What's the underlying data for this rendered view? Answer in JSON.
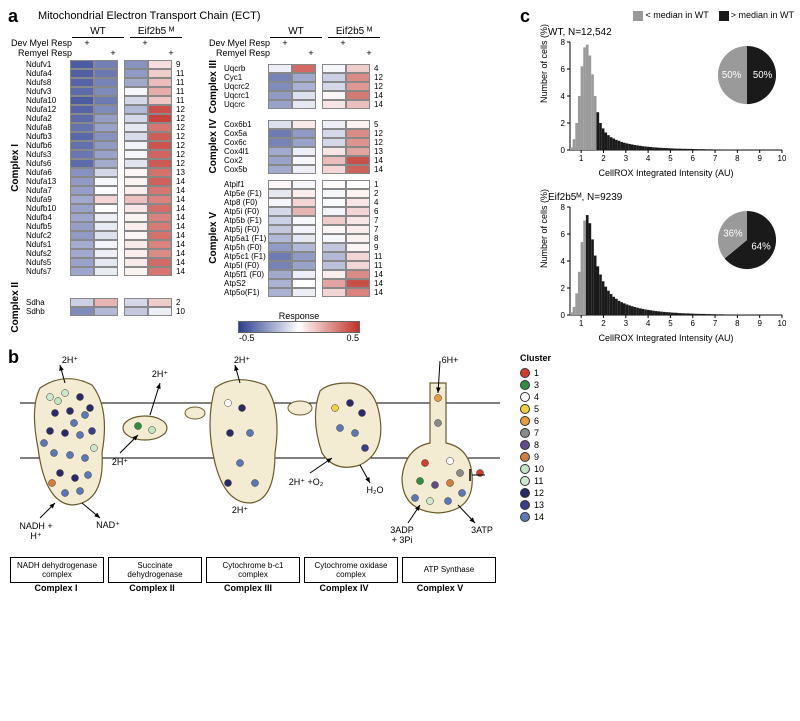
{
  "panel_labels": {
    "a": "a",
    "b": "b",
    "c": "c"
  },
  "etc_title": "Mitochondrial Electron Transport Chain (ECT)",
  "genotypes": [
    "WT",
    "Eif2b5 ᴹ"
  ],
  "conditions": {
    "dev": "Dev Myel Resp",
    "rem": "Remyel Resp"
  },
  "plus": "+",
  "response": {
    "label": "Response",
    "min": "-0.5",
    "max": "0.5"
  },
  "colors": {
    "scale_low": "#2b3e8f",
    "scale_high": "#c03028",
    "gray": "#9a9a9a",
    "black": "#1a1a1a",
    "membrane": "#f3ecd2",
    "membrane_stroke": "#6b5a2a"
  },
  "complexes_left": [
    {
      "name": "Complex I",
      "genes": [
        {
          "n": "Ndufv1",
          "c": 9,
          "v": [
            -0.42,
            -0.33,
            -0.28,
            0.08
          ]
        },
        {
          "n": "Ndufa4",
          "c": 11,
          "v": [
            -0.41,
            -0.35,
            -0.26,
            0.12
          ]
        },
        {
          "n": "Ndufs8",
          "c": 11,
          "v": [
            -0.4,
            -0.32,
            -0.22,
            0.16
          ]
        },
        {
          "n": "Ndufv3",
          "c": 11,
          "v": [
            -0.38,
            -0.3,
            -0.02,
            0.2
          ]
        },
        {
          "n": "Ndufa10",
          "c": 11,
          "v": [
            -0.42,
            -0.34,
            -0.1,
            0.14
          ]
        },
        {
          "n": "Ndufa12",
          "c": 12,
          "v": [
            -0.4,
            -0.3,
            -0.18,
            0.42
          ]
        },
        {
          "n": "Ndufa2",
          "c": 12,
          "v": [
            -0.38,
            -0.25,
            -0.1,
            0.45
          ]
        },
        {
          "n": "Ndufa8",
          "c": 12,
          "v": [
            -0.36,
            -0.24,
            -0.06,
            0.33
          ]
        },
        {
          "n": "Ndufb3",
          "c": 12,
          "v": [
            -0.39,
            -0.28,
            -0.09,
            0.39
          ]
        },
        {
          "n": "Ndufb6",
          "c": 12,
          "v": [
            -0.37,
            -0.26,
            -0.03,
            0.41
          ]
        },
        {
          "n": "Ndufs3",
          "c": 12,
          "v": [
            -0.35,
            -0.24,
            -0.02,
            0.37
          ]
        },
        {
          "n": "Ndufs6",
          "c": 12,
          "v": [
            -0.38,
            -0.22,
            -0.07,
            0.4
          ]
        },
        {
          "n": "Ndufa6",
          "c": 13,
          "v": [
            -0.28,
            -0.1,
            0.02,
            0.34
          ]
        },
        {
          "n": "Ndufa13",
          "c": 14,
          "v": [
            -0.26,
            -0.02,
            0.03,
            0.38
          ]
        },
        {
          "n": "Ndufa7",
          "c": 14,
          "v": [
            -0.25,
            -0.01,
            0.04,
            0.33
          ]
        },
        {
          "n": "Ndufa9",
          "c": 14,
          "v": [
            -0.22,
            0.1,
            0.15,
            0.3
          ]
        },
        {
          "n": "Ndufb10",
          "c": 14,
          "v": [
            -0.24,
            0.0,
            0.06,
            0.35
          ]
        },
        {
          "n": "Ndufb4",
          "c": 14,
          "v": [
            -0.23,
            -0.04,
            0.03,
            0.3
          ]
        },
        {
          "n": "Ndufb5",
          "c": 14,
          "v": [
            -0.25,
            -0.05,
            0.04,
            0.32
          ]
        },
        {
          "n": "Ndufc2",
          "c": 14,
          "v": [
            -0.26,
            -0.08,
            0.02,
            0.34
          ]
        },
        {
          "n": "Ndufs1",
          "c": 14,
          "v": [
            -0.21,
            -0.03,
            0.05,
            0.3
          ]
        },
        {
          "n": "Ndufs2",
          "c": 14,
          "v": [
            -0.22,
            -0.04,
            0.04,
            0.28
          ]
        },
        {
          "n": "Ndufs5",
          "c": 14,
          "v": [
            -0.24,
            -0.06,
            0.05,
            0.36
          ]
        },
        {
          "n": "Ndufs7",
          "c": 14,
          "v": [
            -0.23,
            -0.05,
            0.03,
            0.33
          ]
        }
      ]
    },
    {
      "name": "Complex II",
      "genes": [
        {
          "n": "Sdha",
          "c": 2,
          "v": [
            -0.12,
            0.18,
            -0.1,
            0.12
          ]
        },
        {
          "n": "Sdhb",
          "c": 10,
          "v": [
            -0.3,
            -0.18,
            -0.14,
            -0.04
          ]
        }
      ]
    }
  ],
  "complexes_right": [
    {
      "name": "Complex III",
      "genes": [
        {
          "n": "Uqcrb",
          "c": 4,
          "v": [
            -0.04,
            0.36,
            -0.02,
            0.12
          ]
        },
        {
          "n": "Cyc1",
          "c": 12,
          "v": [
            -0.32,
            -0.22,
            -0.12,
            0.28
          ]
        },
        {
          "n": "Uqcrc2",
          "c": 12,
          "v": [
            -0.3,
            -0.2,
            -0.1,
            0.25
          ]
        },
        {
          "n": "Uqcrc1",
          "c": 14,
          "v": [
            -0.26,
            -0.08,
            0.02,
            0.32
          ]
        },
        {
          "n": "Uqcrc",
          "c": 14,
          "v": [
            -0.24,
            -0.06,
            0.06,
            0.15
          ]
        }
      ]
    },
    {
      "name": "Complex IV",
      "genes": [
        {
          "n": "Cox6b1",
          "c": 5,
          "v": [
            -0.08,
            0.05,
            -0.04,
            0.03
          ]
        },
        {
          "n": "Cox5a",
          "c": 12,
          "v": [
            -0.34,
            -0.26,
            -0.1,
            0.28
          ]
        },
        {
          "n": "Cox6c",
          "c": 12,
          "v": [
            -0.32,
            -0.24,
            -0.1,
            0.26
          ]
        },
        {
          "n": "Cox4l1",
          "c": 13,
          "v": [
            -0.22,
            -0.04,
            0.06,
            0.22
          ]
        },
        {
          "n": "Cox2",
          "c": 14,
          "v": [
            -0.24,
            -0.02,
            0.16,
            0.42
          ]
        },
        {
          "n": "Cox5b",
          "c": 14,
          "v": [
            -0.22,
            -0.04,
            0.1,
            0.38
          ]
        }
      ]
    },
    {
      "name": "Complex V",
      "genes": [
        {
          "n": "Atpif1",
          "c": 1,
          "v": [
            0.02,
            -0.02,
            0.01,
            0.0
          ]
        },
        {
          "n": "Atp5e (F1)",
          "c": 2,
          "v": [
            -0.06,
            0.04,
            -0.02,
            0.03
          ]
        },
        {
          "n": "Atp8 (F0)",
          "c": 4,
          "v": [
            -0.02,
            0.1,
            -0.01,
            0.06
          ]
        },
        {
          "n": "Atp5i (F0)",
          "c": 6,
          "v": [
            -0.1,
            0.18,
            -0.03,
            0.1
          ]
        },
        {
          "n": "Atp5b (F1)",
          "c": 7,
          "v": [
            -0.12,
            -0.02,
            0.12,
            0.06
          ]
        },
        {
          "n": "Atp5j (F0)",
          "c": 7,
          "v": [
            -0.14,
            -0.03,
            0.02,
            0.04
          ]
        },
        {
          "n": "Atp5a1 (F1)",
          "c": 8,
          "v": [
            -0.18,
            -0.06,
            -0.02,
            0.03
          ]
        },
        {
          "n": "Atp5h (F0)",
          "c": 9,
          "v": [
            -0.26,
            -0.18,
            -0.14,
            0.02
          ]
        },
        {
          "n": "Atp5c1 (F1)",
          "c": 11,
          "v": [
            -0.34,
            -0.26,
            -0.18,
            0.1
          ]
        },
        {
          "n": "Atp5l (F0)",
          "c": 11,
          "v": [
            -0.32,
            -0.24,
            -0.16,
            0.1
          ]
        },
        {
          "n": "Atp5f1 (F0)",
          "c": 14,
          "v": [
            -0.22,
            -0.04,
            0.04,
            0.28
          ]
        },
        {
          "n": "AtpS2",
          "c": 14,
          "v": [
            -0.2,
            0.0,
            0.22,
            0.42
          ]
        },
        {
          "n": "Atp5o(F1)",
          "c": 14,
          "v": [
            -0.2,
            -0.04,
            0.1,
            0.3
          ]
        }
      ]
    }
  ],
  "panel_c": {
    "legend": {
      "below": "< median in WT",
      "above": "> median in WT"
    },
    "y_label": "Number of cells (%)",
    "x_label": "CellROX Integrated Intensity (AU)",
    "x_ticks": [
      1,
      2,
      3,
      4,
      5,
      6,
      7,
      8,
      9,
      10
    ],
    "y_ticks": [
      0,
      2,
      4,
      6,
      8
    ],
    "wt": {
      "title": "WT, N=12,542",
      "pie": {
        "below": 50,
        "above": 50
      },
      "bins_gray": [
        0.2,
        0.8,
        2.0,
        4.0,
        6.2,
        7.6,
        7.8,
        7.0,
        5.6,
        4.0
      ],
      "bins_black": [
        2.8,
        2.0,
        1.6,
        1.3,
        1.1,
        0.95,
        0.85,
        0.75,
        0.68,
        0.6,
        0.54,
        0.49,
        0.45,
        0.41,
        0.37,
        0.34,
        0.31,
        0.28,
        0.26,
        0.24,
        0.22,
        0.2,
        0.19,
        0.17,
        0.16,
        0.15,
        0.14,
        0.13,
        0.12,
        0.11,
        0.1,
        0.1,
        0.09,
        0.09,
        0.08,
        0.08,
        0.07,
        0.07,
        0.06,
        0.06,
        0.06,
        0.05,
        0.05,
        0.05,
        0.04,
        0.04,
        0.04,
        0.04,
        0.03,
        0.03,
        0.03,
        0.03,
        0.03,
        0.02,
        0.02,
        0.02,
        0.02,
        0.02,
        0.02,
        0.02,
        0.02,
        0.01,
        0.01,
        0.01,
        0.01,
        0.01,
        0.01,
        0.01,
        0.01,
        0.01
      ]
    },
    "eif": {
      "title": "Eif2b5ᴹ, N=9239",
      "pie": {
        "below": 36,
        "above": 64
      },
      "bins_gray": [
        0.2,
        0.6,
        1.6,
        3.2,
        5.4,
        7.0
      ],
      "bins_black": [
        7.4,
        6.8,
        5.6,
        4.4,
        3.6,
        3.0,
        2.5,
        2.1,
        1.8,
        1.55,
        1.35,
        1.2,
        1.05,
        0.95,
        0.86,
        0.78,
        0.71,
        0.65,
        0.59,
        0.54,
        0.49,
        0.45,
        0.41,
        0.38,
        0.35,
        0.32,
        0.29,
        0.27,
        0.25,
        0.23,
        0.21,
        0.2,
        0.18,
        0.17,
        0.16,
        0.14,
        0.13,
        0.12,
        0.12,
        0.11,
        0.1,
        0.09,
        0.09,
        0.08,
        0.08,
        0.07,
        0.07,
        0.06,
        0.06,
        0.05,
        0.05,
        0.05,
        0.04,
        0.04,
        0.04,
        0.04,
        0.03,
        0.03,
        0.03,
        0.03,
        0.02,
        0.02,
        0.02,
        0.02,
        0.02,
        0.02,
        0.02,
        0.01,
        0.01,
        0.01,
        0.01,
        0.01,
        0.01,
        0.01
      ]
    }
  },
  "panel_b": {
    "cluster_legend_title": "Cluster",
    "clusters": [
      {
        "n": 1,
        "c": "#d63c2a"
      },
      {
        "n": 3,
        "c": "#2f8f3f"
      },
      {
        "n": 4,
        "c": "#ffffff"
      },
      {
        "n": 5,
        "c": "#f4d03f"
      },
      {
        "n": 6,
        "c": "#e89b3b"
      },
      {
        "n": 7,
        "c": "#8a8a8a"
      },
      {
        "n": 8,
        "c": "#5f4b8b"
      },
      {
        "n": 9,
        "c": "#d67d3b"
      },
      {
        "n": 10,
        "c": "#bfe6bf"
      },
      {
        "n": 11,
        "c": "#cfe8cf"
      },
      {
        "n": 12,
        "c": "#2a2a6a"
      },
      {
        "n": 13,
        "c": "#3b3b8f"
      },
      {
        "n": 14,
        "c": "#5a78b8"
      }
    ],
    "labels": {
      "h2": "2H⁺",
      "h6": "6H+",
      "nadh": "NADH +\nH⁺",
      "nad": "NAD⁺",
      "o2": "2H⁺ +O₂",
      "h2o": "H₂O",
      "adp": "3ADP\n+ 3Pi",
      "atp": "3ATP"
    },
    "boxes": [
      "NADH dehydrogenase complex",
      "Succinate dehydrogenase",
      "Cytochrome b-c1 complex",
      "Cytochrome oxidase complex",
      "ATP Synthase"
    ],
    "box_labels": [
      "Complex I",
      "Complex II",
      "Complex III",
      "Complex IV",
      "Complex V"
    ]
  }
}
